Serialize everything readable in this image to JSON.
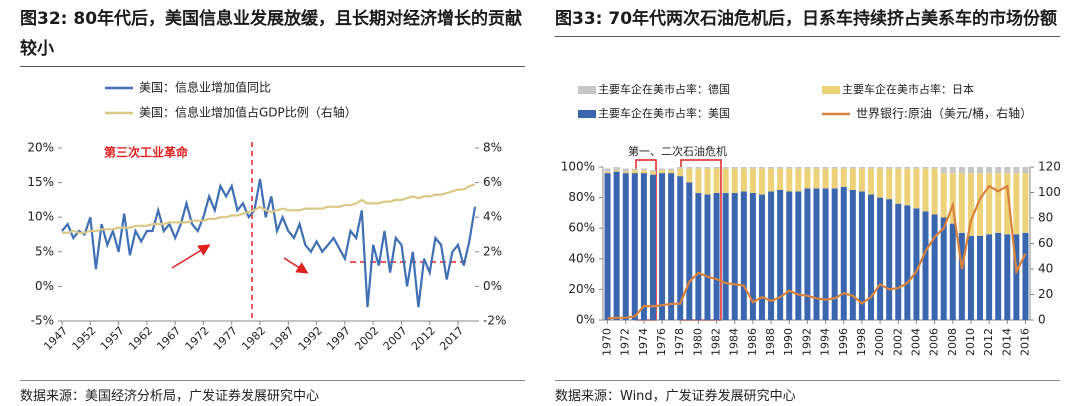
{
  "chart_data": [
    {
      "type": "line",
      "title": "图32: 80年代后，美国信息业发展放缓，且长期对经济增长的贡献较小",
      "annotation": "第三次工业革命",
      "source": "数据来源：美国经济分析局，广发证券发展研究中心",
      "x": [
        1947,
        1948,
        1949,
        1950,
        1951,
        1952,
        1953,
        1954,
        1955,
        1956,
        1957,
        1958,
        1959,
        1960,
        1961,
        1962,
        1963,
        1964,
        1965,
        1966,
        1967,
        1968,
        1969,
        1970,
        1971,
        1972,
        1973,
        1974,
        1975,
        1976,
        1977,
        1978,
        1979,
        1980,
        1981,
        1982,
        1983,
        1984,
        1985,
        1986,
        1987,
        1988,
        1989,
        1990,
        1991,
        1992,
        1993,
        1994,
        1995,
        1996,
        1997,
        1998,
        1999,
        2000,
        2001,
        2002,
        2003,
        2004,
        2005,
        2006,
        2007,
        2008,
        2009,
        2010,
        2011,
        2012,
        2013,
        2014,
        2015,
        2016,
        2017,
        2018,
        2019,
        2020
      ],
      "xlim": [
        1947,
        2020
      ],
      "xticks": [
        1947,
        1952,
        1957,
        1962,
        1967,
        1972,
        1977,
        1982,
        1987,
        1992,
        1997,
        2002,
        2007,
        2012,
        2017
      ],
      "ylim": [
        -5,
        20
      ],
      "yticks": [
        {
          "value": -5,
          "label": "-5%"
        },
        {
          "value": 0,
          "label": "0%"
        },
        {
          "value": 5,
          "label": "5%"
        },
        {
          "value": 10,
          "label": "10%"
        },
        {
          "value": 15,
          "label": "15%"
        },
        {
          "value": 20,
          "label": "20%"
        }
      ],
      "y2lim": [
        -2,
        8
      ],
      "y2ticks": [
        {
          "value": -2,
          "label": "-2%"
        },
        {
          "value": 0,
          "label": "0%"
        },
        {
          "value": 2,
          "label": "2%"
        },
        {
          "value": 4,
          "label": "4%"
        },
        {
          "value": 6,
          "label": "6%"
        },
        {
          "value": 8,
          "label": "8%"
        }
      ],
      "series": [
        {
          "name": "美国：信息业增加值同比",
          "color": "#3f6fb4",
          "values": [
            8,
            9,
            7,
            8,
            7.5,
            10,
            2.5,
            9,
            6,
            8,
            5,
            10.5,
            4.5,
            8,
            6.5,
            8,
            8,
            11,
            8,
            9,
            7,
            9,
            12,
            9,
            8,
            10,
            13,
            11,
            14.5,
            13,
            14.5,
            11,
            12,
            10,
            11,
            15.5,
            10,
            13,
            8,
            10,
            8,
            7,
            9,
            6,
            5,
            6.5,
            5,
            6,
            7,
            5.5,
            4,
            8,
            7,
            11,
            -3,
            6,
            3,
            8,
            2,
            7,
            6,
            0,
            5,
            -3,
            4,
            2,
            7,
            6,
            1,
            5,
            6,
            3,
            6.5,
            11.5
          ]
        },
        {
          "name": "美国：信息业增加值占GDP比例（右轴）",
          "color": "#dcc885",
          "axis": "y2",
          "values": [
            3.1,
            3.1,
            3.2,
            3.1,
            3.1,
            3.2,
            3.2,
            3.3,
            3.3,
            3.3,
            3.4,
            3.4,
            3.4,
            3.5,
            3.5,
            3.5,
            3.6,
            3.6,
            3.6,
            3.7,
            3.7,
            3.7,
            3.7,
            3.8,
            3.8,
            3.8,
            3.9,
            3.9,
            4.0,
            4.0,
            4.1,
            4.1,
            4.2,
            4.3,
            4.4,
            4.6,
            4.4,
            4.3,
            4.4,
            4.5,
            4.4,
            4.4,
            4.4,
            4.5,
            4.5,
            4.5,
            4.5,
            4.6,
            4.6,
            4.6,
            4.7,
            4.7,
            4.8,
            5.0,
            4.8,
            4.8,
            4.8,
            4.9,
            4.9,
            5.0,
            5.0,
            5.1,
            5.2,
            5.1,
            5.2,
            5.2,
            5.3,
            5.3,
            5.4,
            5.5,
            5.6,
            5.6,
            5.8,
            5.9
          ]
        }
      ]
    },
    {
      "type": "bar",
      "stacked": true,
      "title": "图33: 70年代两次石油危机后，日系车持续挤占美系车的市场份额",
      "annotation": "第一、二次石油危机",
      "source": "数据来源：Wind，广发证券发展研究中心",
      "x": [
        1970,
        1971,
        1972,
        1973,
        1974,
        1975,
        1976,
        1977,
        1978,
        1979,
        1980,
        1981,
        1982,
        1983,
        1984,
        1985,
        1986,
        1987,
        1988,
        1989,
        1990,
        1991,
        1992,
        1993,
        1994,
        1995,
        1996,
        1997,
        1998,
        1999,
        2000,
        2001,
        2002,
        2003,
        2004,
        2005,
        2006,
        2007,
        2008,
        2009,
        2010,
        2011,
        2012,
        2013,
        2014,
        2015,
        2016
      ],
      "xlim": [
        1969.5,
        2016.5
      ],
      "xticks": [
        1970,
        1972,
        1974,
        1976,
        1978,
        1980,
        1982,
        1984,
        1986,
        1988,
        1990,
        1992,
        1994,
        1996,
        1998,
        2000,
        2002,
        2004,
        2006,
        2008,
        2010,
        2012,
        2014,
        2016
      ],
      "ylim": [
        0,
        100
      ],
      "yticks": [
        {
          "value": 0,
          "label": "0%"
        },
        {
          "value": 20,
          "label": "20%"
        },
        {
          "value": 40,
          "label": "40%"
        },
        {
          "value": 60,
          "label": "60%"
        },
        {
          "value": 80,
          "label": "80%"
        },
        {
          "value": 100,
          "label": "100%"
        }
      ],
      "y2lim": [
        0,
        120
      ],
      "y2ticks": [
        0,
        20,
        40,
        60,
        80,
        100,
        120
      ],
      "series": [
        {
          "name": "主要车企在美市占率：美国",
          "color": "#3a66b0",
          "values": [
            96,
            97,
            96,
            96,
            96,
            95,
            96,
            96,
            94,
            90,
            83,
            82,
            83,
            83,
            83,
            84,
            83,
            82,
            84,
            85,
            84,
            84,
            86,
            86,
            86,
            86,
            87,
            85,
            84,
            82,
            80,
            79,
            76,
            75,
            73,
            71,
            69,
            67,
            63,
            57,
            55,
            55,
            56,
            57,
            56,
            56,
            57
          ]
        },
        {
          "name": "主要车企在美市占率：日本",
          "color": "#edd27a",
          "values": [
            1,
            1,
            1,
            2,
            2,
            2,
            2,
            2,
            5,
            9,
            16,
            17,
            16,
            16,
            16,
            15,
            16,
            17,
            15,
            14,
            15,
            15,
            13,
            13,
            13,
            13,
            12,
            14,
            15,
            17,
            19,
            20,
            23,
            24,
            26,
            28,
            30,
            29,
            33,
            39,
            41,
            41,
            40,
            39,
            40,
            40,
            39
          ]
        },
        {
          "name": "主要车企在美市占率：德国",
          "color": "#c6c6c6",
          "values": [
            2,
            2,
            2,
            1,
            1,
            1,
            1,
            1,
            1,
            1,
            1,
            1,
            1,
            1,
            1,
            1,
            1,
            1,
            1,
            1,
            1,
            1,
            1,
            1,
            1,
            1,
            1,
            1,
            1,
            1,
            1,
            1,
            1,
            1,
            1,
            1,
            1,
            4,
            4,
            4,
            4,
            4,
            4,
            4,
            4,
            4,
            4
          ]
        },
        {
          "name": "世界银行:原油（美元/桶，右轴）",
          "color": "#d9823b",
          "type": "line",
          "axis": "y2",
          "values": [
            1.3,
            1.7,
            1.8,
            2.8,
            11,
            10.7,
            11.6,
            12.6,
            12.9,
            30,
            37,
            34,
            32,
            29,
            28,
            27,
            14,
            18,
            15,
            18,
            23,
            20,
            19,
            17,
            16,
            17,
            21,
            19,
            13,
            18,
            28,
            24,
            25,
            29,
            38,
            54,
            65,
            72,
            90,
            40,
            78,
            95,
            105,
            101,
            105,
            38,
            52
          ]
        }
      ]
    }
  ]
}
